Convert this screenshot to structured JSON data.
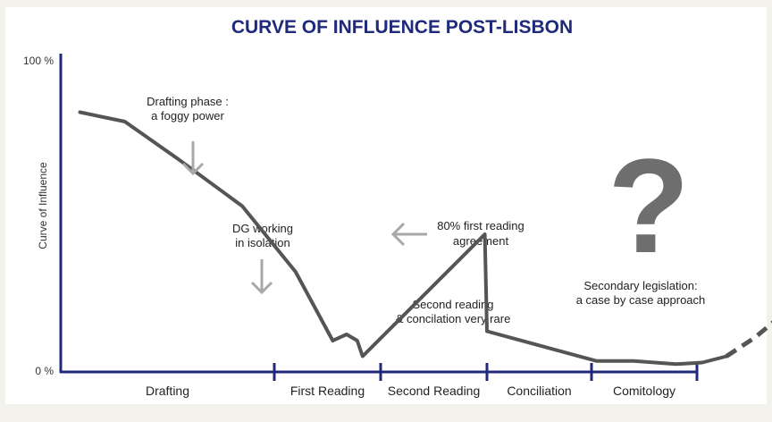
{
  "chart_data": {
    "type": "line",
    "title": "CURVE OF INFLUENCE POST-LISBON",
    "ylabel": "Curve of Influence",
    "ytick_labels": [
      "100 %",
      "0 %"
    ],
    "ylim": [
      0,
      100
    ],
    "phases": [
      "Drafting",
      "First Reading",
      "Second Reading",
      "Conciliation",
      "Comitology"
    ],
    "curve_points": [
      {
        "phase_pos": 0.09,
        "value": 83
      },
      {
        "phase_pos": 0.3,
        "value": 80
      },
      {
        "phase_pos": 0.55,
        "value": 68
      },
      {
        "phase_pos": 0.85,
        "value": 53
      },
      {
        "phase_pos": 1.2,
        "value": 32
      },
      {
        "phase_pos": 1.55,
        "value": 10
      },
      {
        "phase_pos": 1.68,
        "value": 12
      },
      {
        "phase_pos": 1.78,
        "value": 10
      },
      {
        "phase_pos": 1.83,
        "value": 5
      },
      {
        "phase_pos": 2.98,
        "value": 44
      },
      {
        "phase_pos": 3.0,
        "value": 13
      },
      {
        "phase_pos": 4.05,
        "value": 3.5
      },
      {
        "phase_pos": 4.4,
        "value": 3.5
      },
      {
        "phase_pos": 4.8,
        "value": 2.5
      },
      {
        "phase_pos": 5.05,
        "value": 3
      },
      {
        "phase_pos": 5.28,
        "value": 5
      }
    ],
    "dashed_points": [
      {
        "phase_pos": 5.28,
        "value": 5
      },
      {
        "phase_pos": 5.55,
        "value": 11
      },
      {
        "phase_pos": 5.8,
        "value": 18
      }
    ],
    "annotations": [
      {
        "lines": [
          "Drafting phase :",
          "a foggy power"
        ]
      },
      {
        "lines": [
          "DG working",
          "in isolation"
        ]
      },
      {
        "lines": [
          "80% first reading",
          "agreement"
        ]
      },
      {
        "lines": [
          "Second reading",
          "& concilation very rare"
        ]
      },
      {
        "lines": [
          "Secondary legislation:",
          "a case by case approach"
        ]
      }
    ],
    "question_mark": "?",
    "colors": {
      "axis": "#1f2a7a",
      "curve": "#555555",
      "arrow": "#a8a8a8",
      "title": "#1f2a7a"
    }
  }
}
